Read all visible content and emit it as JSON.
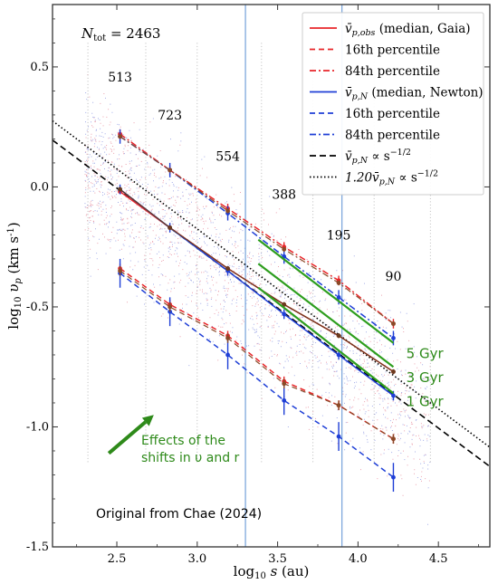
{
  "chart_data": {
    "type": "line",
    "xlabel_main": "log",
    "xlabel_sub": "10",
    "xlabel_var": " s",
    "xlabel_unit": " (au)",
    "ylabel_main": "log",
    "ylabel_sub": "10",
    "ylabel_var": " υ",
    "ylabel_var_sub": "p",
    "ylabel_unit": " (km s",
    "ylabel_unit_sup": "-1",
    "ylabel_unit_end": ")",
    "xlim": [
      2.1,
      4.82
    ],
    "ylim": [
      -1.5,
      0.76
    ],
    "xticks": [
      {
        "v": 2.5,
        "label": "2.5"
      },
      {
        "v": 3.0,
        "label": "3.0"
      },
      {
        "v": 3.5,
        "label": "3.5"
      },
      {
        "v": 4.0,
        "label": "4.0"
      },
      {
        "v": 4.5,
        "label": "4.5"
      }
    ],
    "yticks": [
      {
        "v": 0.5,
        "label": "0.5"
      },
      {
        "v": 0.0,
        "label": "0.0"
      },
      {
        "v": -0.5,
        "label": "-0.5"
      },
      {
        "v": -1.0,
        "label": "-1.0"
      },
      {
        "v": -1.5,
        "label": "-1.5"
      }
    ],
    "ntot": {
      "main": "N",
      "sub": "tot",
      "rest": " = 2463"
    },
    "bin_counts": [
      {
        "x": 2.52,
        "y": 0.44,
        "label": "513"
      },
      {
        "x": 2.83,
        "y": 0.28,
        "label": "723"
      },
      {
        "x": 3.19,
        "y": 0.11,
        "label": "554"
      },
      {
        "x": 3.54,
        "y": -0.05,
        "label": "388"
      },
      {
        "x": 3.88,
        "y": -0.22,
        "label": "195"
      },
      {
        "x": 4.22,
        "y": -0.39,
        "label": "90"
      }
    ],
    "vertical_lines": [
      3.3,
      3.9
    ],
    "dotted_bin_lines": [
      2.32,
      2.68,
      3.0,
      3.4,
      3.72,
      4.1,
      4.45
    ],
    "bin_x": [
      2.52,
      2.83,
      3.19,
      3.54,
      3.88,
      4.22
    ],
    "series": [
      {
        "style": "red-solid",
        "values": [
          -0.02,
          -0.17,
          -0.34,
          -0.49,
          -0.62,
          -0.77
        ],
        "err": 0
      },
      {
        "style": "red-dash",
        "values": [
          -0.34,
          -0.49,
          -0.62,
          -0.81,
          -0.91,
          -1.05
        ],
        "err": 0.02
      },
      {
        "style": "red-dashdot",
        "values": [
          0.22,
          0.07,
          -0.09,
          -0.25,
          -0.39,
          -0.57
        ],
        "err": 0.02
      },
      {
        "style": "blue-solid",
        "values": [
          -0.01,
          -0.17,
          -0.35,
          -0.53,
          -0.7,
          -0.87
        ],
        "err": 0.02
      },
      {
        "style": "blue-dash",
        "values": [
          -0.36,
          -0.52,
          -0.7,
          -0.89,
          -1.04,
          -1.21
        ],
        "err": 0.06
      },
      {
        "style": "blue-dashdot",
        "values": [
          0.21,
          0.07,
          -0.11,
          -0.29,
          -0.46,
          -0.63
        ],
        "err": 0.03
      },
      {
        "style": "brown-solid",
        "values": [
          -0.01,
          -0.17,
          -0.34,
          -0.49,
          -0.62,
          -0.77
        ],
        "err": 0.01
      },
      {
        "style": "brown-dash",
        "values": [
          -0.35,
          -0.5,
          -0.63,
          -0.82,
          -0.91,
          -1.05
        ],
        "err": 0.02
      },
      {
        "style": "brown-dashdot",
        "values": [
          0.21,
          0.07,
          -0.1,
          -0.26,
          -0.4,
          -0.57
        ],
        "err": 0.01
      }
    ],
    "reference_lines": [
      {
        "style": "black-dash",
        "x": [
          2.1,
          4.82
        ],
        "y": [
          0.195,
          -1.165
        ]
      },
      {
        "style": "black-dotted",
        "x": [
          2.1,
          4.82
        ],
        "y": [
          0.275,
          -1.085
        ]
      }
    ],
    "green_lines": [
      {
        "x": [
          3.38,
          4.22
        ],
        "y": [
          -0.22,
          -0.65
        ],
        "label": "5 Gyr",
        "lx": 4.3,
        "ly": -0.69
      },
      {
        "x": [
          3.38,
          4.22
        ],
        "y": [
          -0.32,
          -0.75
        ],
        "label": "3 Gyr",
        "lx": 4.3,
        "ly": -0.79
      },
      {
        "x": [
          3.38,
          4.22
        ],
        "y": [
          -0.42,
          -0.86
        ],
        "label": "1 Gyr",
        "lx": 4.3,
        "ly": -0.89
      }
    ],
    "arrow": {
      "x": [
        2.45,
        2.73
      ],
      "y": [
        -1.11,
        -0.95
      ]
    },
    "annotation_effects": [
      "Effects of the",
      "shifts in υ and r"
    ],
    "annotation_credit": "Original from  Chae (2024)",
    "legend": {
      "placement": "top-right",
      "entries": [
        {
          "style": "red-solid",
          "label": "v̄",
          "sub": "p,obs",
          "rest": " (median, Gaia)"
        },
        {
          "style": "red-dash",
          "label": "16th percentile"
        },
        {
          "style": "red-dashdot",
          "label": "84th percentile"
        },
        {
          "style": "blue-solid",
          "label": "v̄",
          "sub": "p,N",
          "rest": " (median, Newton)"
        },
        {
          "style": "blue-dash",
          "label": "16th percentile"
        },
        {
          "style": "blue-dashdot",
          "label": "84th percentile"
        },
        {
          "style": "black-dash",
          "label": "v̄",
          "sub": "p,N",
          "rest": " ∝ s",
          "sup": "−1/2"
        },
        {
          "style": "black-dotted",
          "label": "1.20v̄",
          "sub": "p,N",
          "rest": " ∝ s",
          "sup": "−1/2"
        }
      ]
    }
  }
}
